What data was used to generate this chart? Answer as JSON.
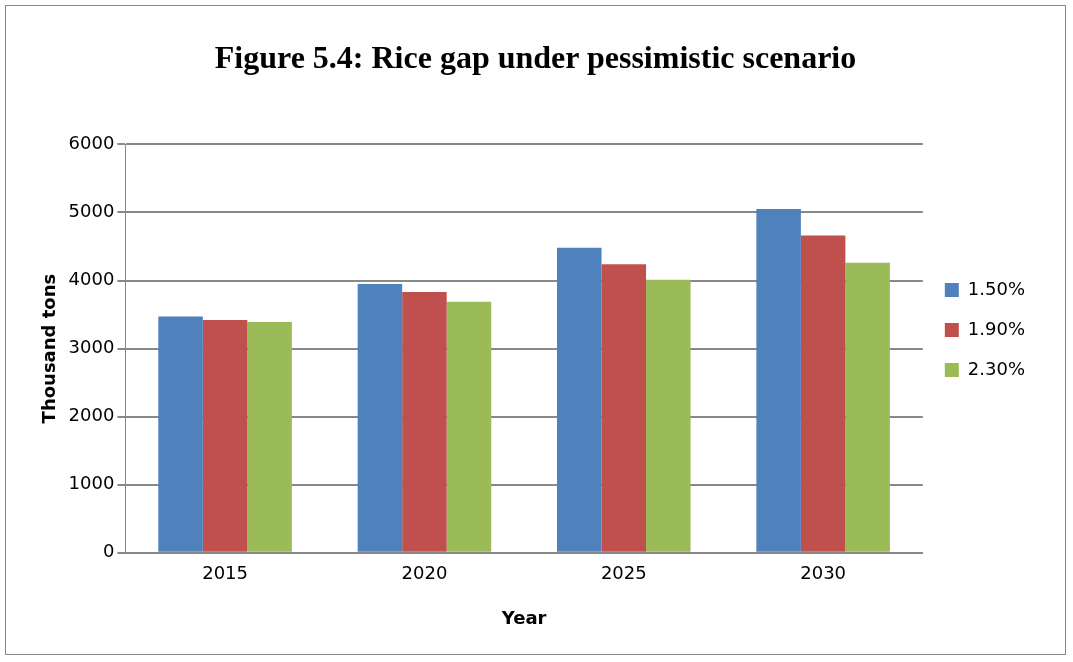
{
  "chart_data": {
    "type": "bar",
    "title": "Figure 5.4: Rice gap under pessimistic scenario",
    "xlabel": "Year",
    "ylabel": "Thousand tons",
    "categories": [
      "2015",
      "2020",
      "2025",
      "2030"
    ],
    "series": [
      {
        "name": "1.50%",
        "color": "#4f81bd",
        "values": [
          3470,
          3950,
          4480,
          5050
        ]
      },
      {
        "name": "1.90%",
        "color": "#c0504d",
        "values": [
          3420,
          3830,
          4240,
          4660
        ]
      },
      {
        "name": "2.30%",
        "color": "#9bbb59",
        "values": [
          3390,
          3690,
          4010,
          4260
        ]
      }
    ],
    "ylim": [
      0,
      6000
    ],
    "yticks": [
      0,
      1000,
      2000,
      3000,
      4000,
      5000,
      6000
    ],
    "grid": "y",
    "legend": "right"
  }
}
